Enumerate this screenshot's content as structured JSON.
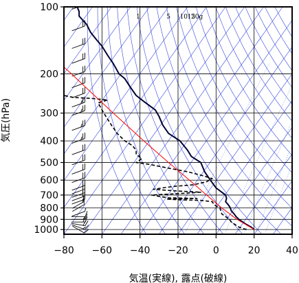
{
  "chart_data": {
    "type": "line",
    "subtype": "skew-T log-P emagram",
    "xlabel": "気温(実線), 露点(破線)",
    "ylabel": "気圧(hPa)",
    "xlim": [
      -80,
      40
    ],
    "ylim": [
      1050,
      100
    ],
    "y_scale": "log",
    "grid": true,
    "x_ticks": [
      -80,
      -60,
      -40,
      -20,
      0,
      20,
      40
    ],
    "x_tick_labels": [
      "−80",
      "−60",
      "−40",
      "−20",
      "0",
      "20",
      "40"
    ],
    "y_ticks": [
      1000,
      900,
      800,
      700,
      600,
      500,
      400,
      300,
      200,
      100
    ],
    "y_tick_labels": [
      "1000",
      "900",
      "800",
      "700",
      "600",
      "500",
      "400",
      "300",
      "200",
      "100"
    ],
    "mixing_ratio_labels": [
      "1",
      "5",
      "10",
      "15",
      "20g"
    ],
    "colors": {
      "temperature": "#000033",
      "dewpoint": "#000000",
      "parcel": "#ff0000",
      "guide_lines": "#3344dd",
      "frame": "#000000",
      "grid": "#000000",
      "wind_barbs": "#000000"
    },
    "series": [
      {
        "points": [
          {
            "p": 1000,
            "t": 20
          },
          {
            "p": 975,
            "t": 18.5
          },
          {
            "p": 950,
            "t": 16
          },
          {
            "p": 925,
            "t": 14
          },
          {
            "p": 900,
            "t": 12
          },
          {
            "p": 875,
            "t": 10.5
          },
          {
            "p": 850,
            "t": 9.5
          },
          {
            "p": 825,
            "t": 8
          },
          {
            "p": 800,
            "t": 7.5
          },
          {
            "p": 775,
            "t": 6.5
          },
          {
            "p": 750,
            "t": 5
          },
          {
            "p": 725,
            "t": 5.5
          },
          {
            "p": 700,
            "t": 5
          },
          {
            "p": 675,
            "t": 2.5
          },
          {
            "p": 650,
            "t": 0
          },
          {
            "p": 600,
            "t": -3
          },
          {
            "p": 550,
            "t": -6
          },
          {
            "p": 500,
            "t": -8
          },
          {
            "p": 470,
            "t": -13
          },
          {
            "p": 440,
            "t": -15
          },
          {
            "p": 400,
            "t": -19
          },
          {
            "p": 370,
            "t": -25
          },
          {
            "p": 340,
            "t": -28
          },
          {
            "p": 310,
            "t": -30
          },
          {
            "p": 290,
            "t": -32
          },
          {
            "p": 270,
            "t": -37
          },
          {
            "p": 250,
            "t": -42
          },
          {
            "p": 230,
            "t": -45
          },
          {
            "p": 210,
            "t": -48
          },
          {
            "p": 200,
            "t": -51
          },
          {
            "p": 180,
            "t": -54
          },
          {
            "p": 165,
            "t": -57
          },
          {
            "p": 150,
            "t": -60
          },
          {
            "p": 140,
            "t": -63
          },
          {
            "p": 130,
            "t": -66
          },
          {
            "p": 120,
            "t": -68
          },
          {
            "p": 115,
            "t": -70
          },
          {
            "p": 110,
            "t": -72
          },
          {
            "p": 105,
            "t": -72
          },
          {
            "p": 100,
            "t": -73
          }
        ]
      },
      {
        "points": [
          {
            "p": 1000,
            "t": 16
          },
          {
            "p": 975,
            "t": 12
          },
          {
            "p": 950,
            "t": 10
          },
          {
            "p": 925,
            "t": 8
          },
          {
            "p": 900,
            "t": 7
          },
          {
            "p": 850,
            "t": 3
          },
          {
            "p": 800,
            "t": 2
          },
          {
            "p": 775,
            "t": -1
          },
          {
            "p": 750,
            "t": -2
          },
          {
            "p": 740,
            "t": -8
          },
          {
            "p": 735,
            "t": -20
          },
          {
            "p": 730,
            "t": -26
          },
          {
            "p": 725,
            "t": -10
          },
          {
            "p": 720,
            "t": -25
          },
          {
            "p": 710,
            "t": -30
          },
          {
            "p": 700,
            "t": -34
          },
          {
            "p": 690,
            "t": -20
          },
          {
            "p": 680,
            "t": -8
          },
          {
            "p": 670,
            "t": -22
          },
          {
            "p": 660,
            "t": -33
          },
          {
            "p": 650,
            "t": -28
          },
          {
            "p": 640,
            "t": -22
          },
          {
            "p": 630,
            "t": -12
          },
          {
            "p": 610,
            "t": -5
          },
          {
            "p": 590,
            "t": -2
          },
          {
            "p": 570,
            "t": -8
          },
          {
            "p": 550,
            "t": -15
          },
          {
            "p": 530,
            "t": -25
          },
          {
            "p": 510,
            "t": -35
          },
          {
            "p": 500,
            "t": -42
          },
          {
            "p": 480,
            "t": -39
          },
          {
            "p": 460,
            "t": -42
          },
          {
            "p": 440,
            "t": -42
          },
          {
            "p": 420,
            "t": -44
          },
          {
            "p": 400,
            "t": -48
          },
          {
            "p": 370,
            "t": -52
          },
          {
            "p": 340,
            "t": -55
          },
          {
            "p": 310,
            "t": -58
          },
          {
            "p": 290,
            "t": -60
          },
          {
            "p": 270,
            "t": -62
          },
          {
            "p": 262,
            "t": -57
          },
          {
            "p": 258,
            "t": -65
          },
          {
            "p": 255,
            "t": -75
          },
          {
            "p": 250,
            "t": -80
          }
        ]
      },
      {
        "points": [
          {
            "p": 1000,
            "t": 20
          },
          {
            "p": 900,
            "t": 11
          },
          {
            "p": 800,
            "t": 3
          },
          {
            "p": 700,
            "t": -5
          },
          {
            "p": 600,
            "t": -14
          },
          {
            "p": 500,
            "t": -25
          },
          {
            "p": 400,
            "t": -38
          },
          {
            "p": 300,
            "t": -54
          },
          {
            "p": 250,
            "t": -64
          },
          {
            "p": 200,
            "t": -76
          },
          {
            "p": 180,
            "t": -82
          }
        ]
      }
    ],
    "wind_barbs": [
      {
        "p": 1000,
        "dir": 300,
        "kt": 10
      },
      {
        "p": 975,
        "dir": 290,
        "kt": 15
      },
      {
        "p": 950,
        "dir": 280,
        "kt": 20
      },
      {
        "p": 925,
        "dir": 270,
        "kt": 20
      },
      {
        "p": 900,
        "dir": 270,
        "kt": 15
      },
      {
        "p": 875,
        "dir": 270,
        "kt": 10
      },
      {
        "p": 850,
        "dir": 250,
        "kt": 5
      },
      {
        "p": 800,
        "dir": 240,
        "kt": 10
      },
      {
        "p": 775,
        "dir": 240,
        "kt": 15
      },
      {
        "p": 750,
        "dir": 250,
        "kt": 15
      },
      {
        "p": 725,
        "dir": 250,
        "kt": 20
      },
      {
        "p": 700,
        "dir": 250,
        "kt": 20
      },
      {
        "p": 675,
        "dir": 250,
        "kt": 20
      },
      {
        "p": 650,
        "dir": 250,
        "kt": 20
      },
      {
        "p": 600,
        "dir": 250,
        "kt": 20
      },
      {
        "p": 550,
        "dir": 250,
        "kt": 20
      },
      {
        "p": 500,
        "dir": 250,
        "kt": 20
      },
      {
        "p": 450,
        "dir": 250,
        "kt": 20
      },
      {
        "p": 400,
        "dir": 250,
        "kt": 25
      },
      {
        "p": 350,
        "dir": 250,
        "kt": 25
      },
      {
        "p": 300,
        "dir": 250,
        "kt": 25
      },
      {
        "p": 275,
        "dir": 250,
        "kt": 25
      },
      {
        "p": 250,
        "dir": 250,
        "kt": 20
      },
      {
        "p": 225,
        "dir": 250,
        "kt": 20
      },
      {
        "p": 200,
        "dir": 250,
        "kt": 20
      },
      {
        "p": 175,
        "dir": 250,
        "kt": 20
      },
      {
        "p": 150,
        "dir": 250,
        "kt": 20
      },
      {
        "p": 125,
        "dir": 250,
        "kt": 20
      },
      {
        "p": 100,
        "dir": 250,
        "kt": 15
      }
    ]
  }
}
